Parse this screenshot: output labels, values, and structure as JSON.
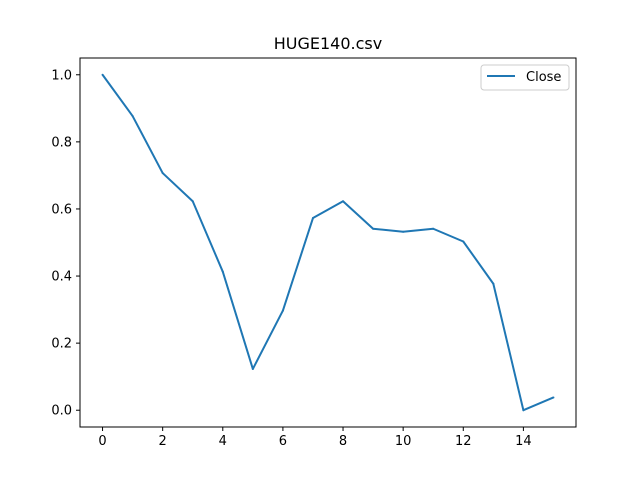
{
  "chart_data": {
    "type": "line",
    "title": "HUGE140.csv",
    "xlabel": "",
    "ylabel": "",
    "x": [
      0,
      1,
      2,
      3,
      4,
      5,
      6,
      7,
      8,
      9,
      10,
      11,
      12,
      13,
      14,
      15
    ],
    "series": [
      {
        "name": "Close",
        "color": "#1f77b4",
        "values": [
          1.0,
          0.877,
          0.707,
          0.623,
          0.413,
          0.123,
          0.297,
          0.573,
          0.623,
          0.541,
          0.532,
          0.541,
          0.503,
          0.377,
          0.0,
          0.038
        ]
      }
    ],
    "xlim": [
      -0.75,
      15.75
    ],
    "ylim": [
      -0.05,
      1.05
    ],
    "xticks": [
      0,
      2,
      4,
      6,
      8,
      10,
      12,
      14
    ],
    "xtick_labels": [
      "0",
      "2",
      "4",
      "6",
      "8",
      "10",
      "12",
      "14"
    ],
    "yticks": [
      0.0,
      0.2,
      0.4,
      0.6,
      0.8,
      1.0
    ],
    "ytick_labels": [
      "0.0",
      "0.2",
      "0.4",
      "0.6",
      "0.8",
      "1.0"
    ],
    "grid": false,
    "legend_position": "top-right"
  }
}
